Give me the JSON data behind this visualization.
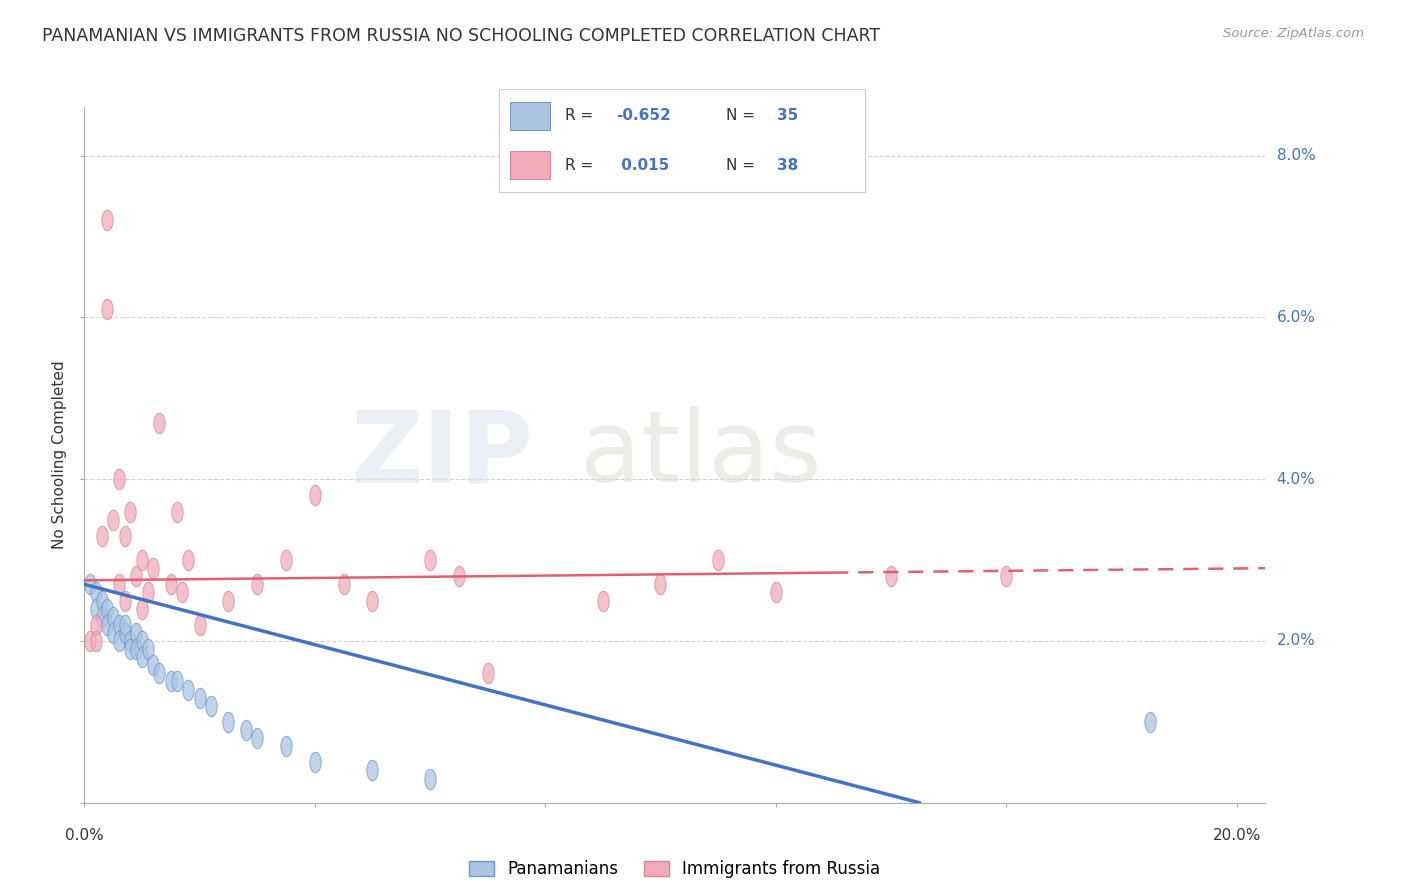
{
  "title": "PANAMANIAN VS IMMIGRANTS FROM RUSSIA NO SCHOOLING COMPLETED CORRELATION CHART",
  "source": "Source: ZipAtlas.com",
  "ylabel": "No Schooling Completed",
  "y_ticks": [
    0.0,
    0.02,
    0.04,
    0.06,
    0.08
  ],
  "y_tick_labels": [
    "",
    "2.0%",
    "4.0%",
    "6.0%",
    "8.0%"
  ],
  "x_ticks": [
    0.0,
    0.04,
    0.08,
    0.12,
    0.16,
    0.2
  ],
  "r_blue": -0.652,
  "n_blue": 35,
  "r_pink": 0.015,
  "n_pink": 38,
  "blue_color": "#aac4e2",
  "pink_color": "#f2aabb",
  "blue_line_color": "#4472c4",
  "pink_line_color": "#e06070",
  "legend1": "Panamanians",
  "legend2": "Immigrants from Russia",
  "blue_x": [
    0.001,
    0.002,
    0.002,
    0.003,
    0.003,
    0.004,
    0.004,
    0.005,
    0.005,
    0.006,
    0.006,
    0.007,
    0.007,
    0.008,
    0.008,
    0.009,
    0.009,
    0.01,
    0.01,
    0.011,
    0.012,
    0.013,
    0.015,
    0.016,
    0.018,
    0.02,
    0.022,
    0.025,
    0.028,
    0.03,
    0.035,
    0.04,
    0.05,
    0.06,
    0.185
  ],
  "blue_y": [
    0.027,
    0.026,
    0.024,
    0.025,
    0.023,
    0.024,
    0.022,
    0.023,
    0.021,
    0.022,
    0.02,
    0.021,
    0.022,
    0.02,
    0.019,
    0.021,
    0.019,
    0.02,
    0.018,
    0.019,
    0.017,
    0.016,
    0.015,
    0.015,
    0.014,
    0.013,
    0.012,
    0.01,
    0.009,
    0.008,
    0.007,
    0.005,
    0.004,
    0.003,
    0.01
  ],
  "pink_x": [
    0.001,
    0.002,
    0.002,
    0.003,
    0.004,
    0.004,
    0.005,
    0.006,
    0.006,
    0.007,
    0.007,
    0.008,
    0.009,
    0.01,
    0.01,
    0.011,
    0.012,
    0.013,
    0.015,
    0.016,
    0.017,
    0.018,
    0.02,
    0.025,
    0.03,
    0.035,
    0.04,
    0.045,
    0.05,
    0.06,
    0.065,
    0.07,
    0.09,
    0.1,
    0.11,
    0.12,
    0.14,
    0.16
  ],
  "pink_y": [
    0.02,
    0.022,
    0.02,
    0.033,
    0.072,
    0.061,
    0.035,
    0.04,
    0.027,
    0.033,
    0.025,
    0.036,
    0.028,
    0.03,
    0.024,
    0.026,
    0.029,
    0.047,
    0.027,
    0.036,
    0.026,
    0.03,
    0.022,
    0.025,
    0.027,
    0.03,
    0.038,
    0.027,
    0.025,
    0.03,
    0.028,
    0.016,
    0.025,
    0.027,
    0.03,
    0.026,
    0.028,
    0.028
  ],
  "background_color": "#ffffff",
  "grid_color": "#cccccc"
}
